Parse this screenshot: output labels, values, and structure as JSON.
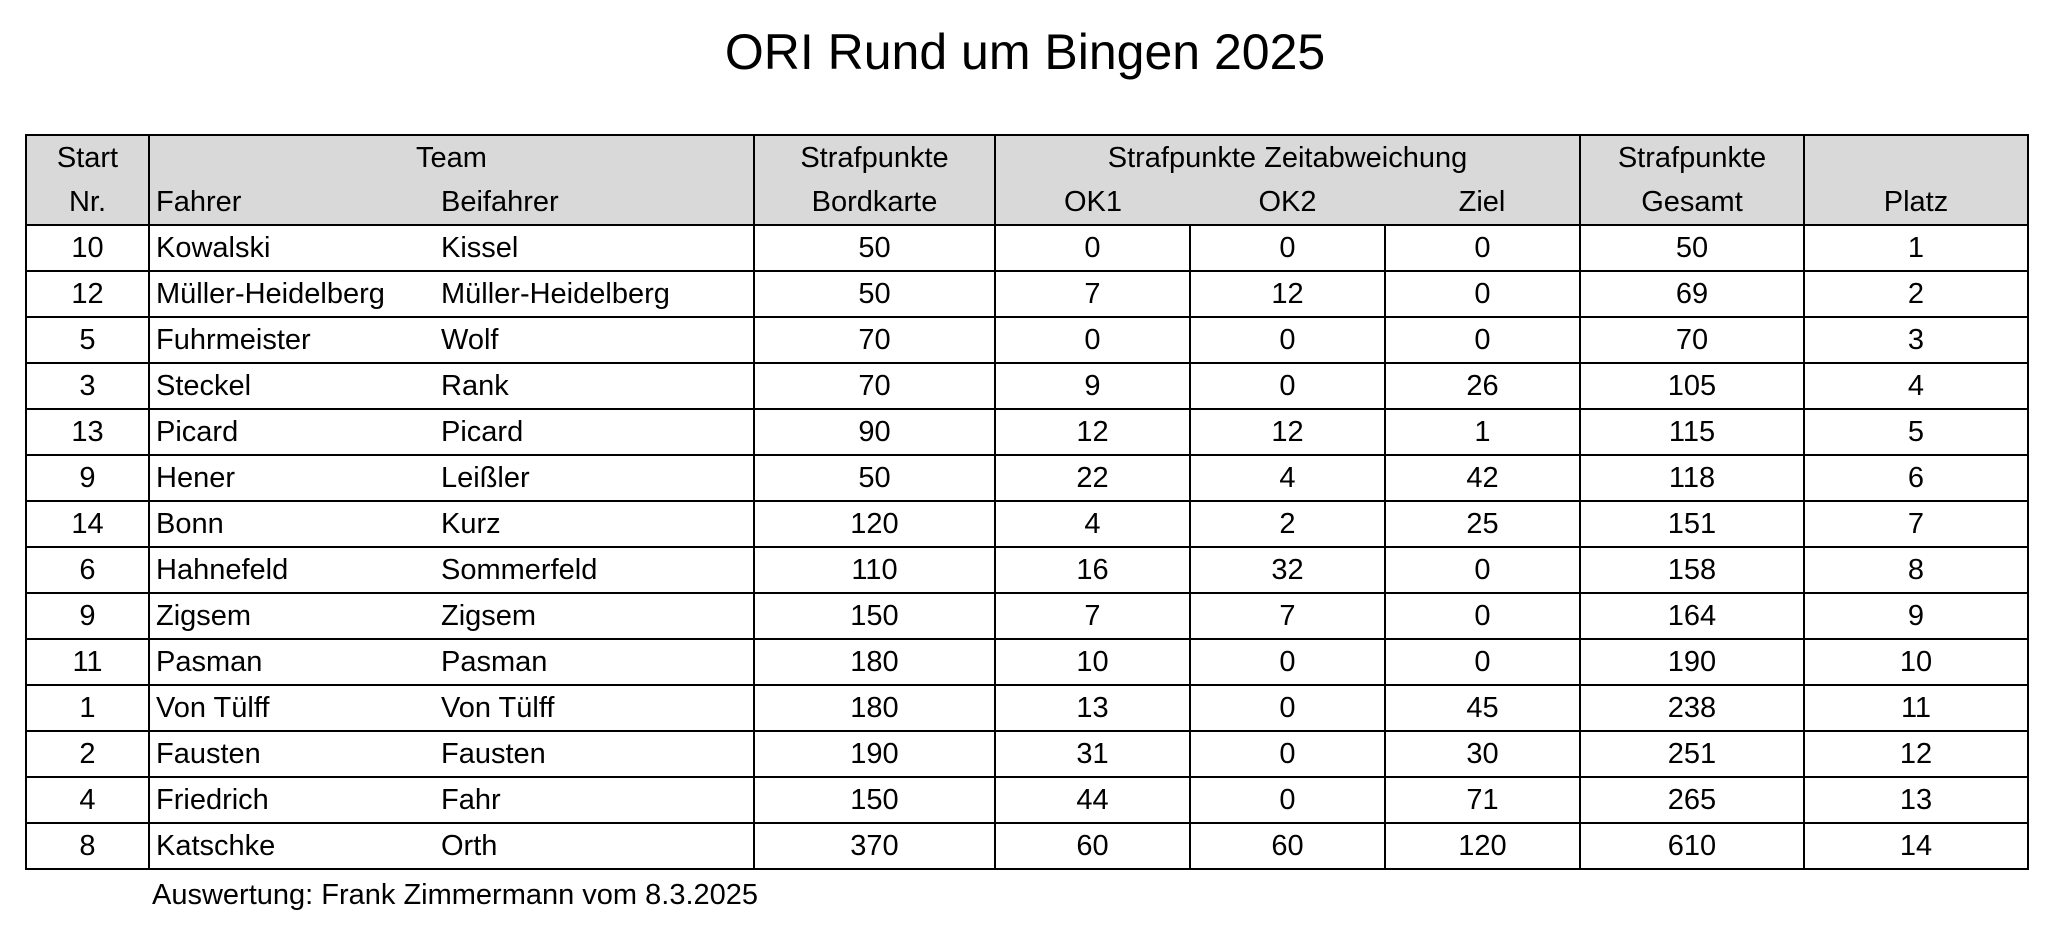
{
  "title": "ORI Rund um Bingen 2025",
  "header": {
    "start_1": "Start",
    "start_2": "Nr.",
    "team": "Team",
    "fahrer": "Fahrer",
    "beifahrer": "Beifahrer",
    "bordkarte_1": "Strafpunkte",
    "bordkarte_2": "Bordkarte",
    "zeit": "Strafpunkte Zeitabweichung",
    "ok1": "OK1",
    "ok2": "OK2",
    "ziel": "Ziel",
    "gesamt_1": "Strafpunkte",
    "gesamt_2": "Gesamt",
    "platz": "Platz"
  },
  "rows": [
    {
      "start": "10",
      "fahrer": "Kowalski",
      "beifahrer": "Kissel",
      "bordkarte": "50",
      "ok1": "0",
      "ok2": "0",
      "ziel": "0",
      "gesamt": "50",
      "platz": "1"
    },
    {
      "start": "12",
      "fahrer": "Müller-Heidelberg",
      "beifahrer": "Müller-Heidelberg",
      "bordkarte": "50",
      "ok1": "7",
      "ok2": "12",
      "ziel": "0",
      "gesamt": "69",
      "platz": "2"
    },
    {
      "start": "5",
      "fahrer": "Fuhrmeister",
      "beifahrer": "Wolf",
      "bordkarte": "70",
      "ok1": "0",
      "ok2": "0",
      "ziel": "0",
      "gesamt": "70",
      "platz": "3"
    },
    {
      "start": "3",
      "fahrer": "Steckel",
      "beifahrer": "Rank",
      "bordkarte": "70",
      "ok1": "9",
      "ok2": "0",
      "ziel": "26",
      "gesamt": "105",
      "platz": "4"
    },
    {
      "start": "13",
      "fahrer": "Picard",
      "beifahrer": "Picard",
      "bordkarte": "90",
      "ok1": "12",
      "ok2": "12",
      "ziel": "1",
      "gesamt": "115",
      "platz": "5"
    },
    {
      "start": "9",
      "fahrer": "Hener",
      "beifahrer": "Leißler",
      "bordkarte": "50",
      "ok1": "22",
      "ok2": "4",
      "ziel": "42",
      "gesamt": "118",
      "platz": "6"
    },
    {
      "start": "14",
      "fahrer": "Bonn",
      "beifahrer": "Kurz",
      "bordkarte": "120",
      "ok1": "4",
      "ok2": "2",
      "ziel": "25",
      "gesamt": "151",
      "platz": "7"
    },
    {
      "start": "6",
      "fahrer": "Hahnefeld",
      "beifahrer": "Sommerfeld",
      "bordkarte": "110",
      "ok1": "16",
      "ok2": "32",
      "ziel": "0",
      "gesamt": "158",
      "platz": "8"
    },
    {
      "start": "9",
      "fahrer": "Zigsem",
      "beifahrer": "Zigsem",
      "bordkarte": "150",
      "ok1": "7",
      "ok2": "7",
      "ziel": "0",
      "gesamt": "164",
      "platz": "9"
    },
    {
      "start": "11",
      "fahrer": "Pasman",
      "beifahrer": "Pasman",
      "bordkarte": "180",
      "ok1": "10",
      "ok2": "0",
      "ziel": "0",
      "gesamt": "190",
      "platz": "10"
    },
    {
      "start": "1",
      "fahrer": "Von Tülff",
      "beifahrer": "Von Tülff",
      "bordkarte": "180",
      "ok1": "13",
      "ok2": "0",
      "ziel": "45",
      "gesamt": "238",
      "platz": "11"
    },
    {
      "start": "2",
      "fahrer": "Fausten",
      "beifahrer": "Fausten",
      "bordkarte": "190",
      "ok1": "31",
      "ok2": "0",
      "ziel": "30",
      "gesamt": "251",
      "platz": "12"
    },
    {
      "start": "4",
      "fahrer": "Friedrich",
      "beifahrer": "Fahr",
      "bordkarte": "150",
      "ok1": "44",
      "ok2": "0",
      "ziel": "71",
      "gesamt": "265",
      "platz": "13"
    },
    {
      "start": "8",
      "fahrer": "Katschke",
      "beifahrer": "Orth",
      "bordkarte": "370",
      "ok1": "60",
      "ok2": "60",
      "ziel": "120",
      "gesamt": "610",
      "platz": "14"
    }
  ],
  "footer": "Auswertung: Frank Zimmermann vom 8.3.2025",
  "colors": {
    "header_background": "#d9d9d9",
    "border": "#000000",
    "text": "#000000"
  }
}
